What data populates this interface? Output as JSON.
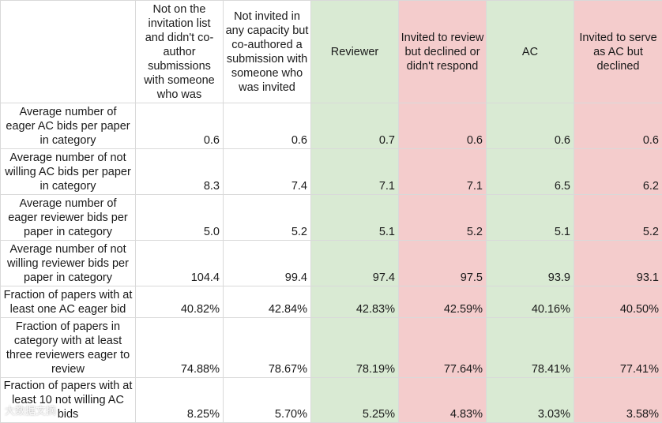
{
  "table": {
    "columns": [
      {
        "label": "Not on the invitation list and didn't co-author submissions with someone who was",
        "color": "none"
      },
      {
        "label": "Not invited in any capacity but co-authored a submission with someone who was invited",
        "color": "none"
      },
      {
        "label": "Reviewer",
        "color": "#d9ead3"
      },
      {
        "label": "Invited to review but declined or didn't respond",
        "color": "#f4cccc"
      },
      {
        "label": "AC",
        "color": "#d9ead3"
      },
      {
        "label": "Invited to serve as AC but declined",
        "color": "#f4cccc"
      }
    ],
    "rows": [
      {
        "label": "Average number of eager AC bids per paper in category",
        "values": [
          "0.6",
          "0.6",
          "0.7",
          "0.6",
          "0.6",
          "0.6"
        ]
      },
      {
        "label": "Average number of not willing AC bids per paper in category",
        "values": [
          "8.3",
          "7.4",
          "7.1",
          "7.1",
          "6.5",
          "6.2"
        ]
      },
      {
        "label": "Average number of eager reviewer bids per paper in category",
        "values": [
          "5.0",
          "5.2",
          "5.1",
          "5.2",
          "5.1",
          "5.2"
        ]
      },
      {
        "label": "Average number of not willing reviewer bids per paper in category",
        "values": [
          "104.4",
          "99.4",
          "97.4",
          "97.5",
          "93.9",
          "93.1"
        ]
      },
      {
        "label": "Fraction of papers with at least one AC eager bid",
        "values": [
          "40.82%",
          "42.84%",
          "42.83%",
          "42.59%",
          "40.16%",
          "40.50%"
        ]
      },
      {
        "label": "Fraction of papers in category with at least three reviewers eager to review",
        "values": [
          "74.88%",
          "78.67%",
          "78.19%",
          "77.64%",
          "78.41%",
          "77.41%"
        ]
      },
      {
        "label": "Fraction of papers with at least 10 not willing AC bids",
        "values": [
          "8.25%",
          "5.70%",
          "5.25%",
          "4.83%",
          "3.03%",
          "3.58%"
        ]
      }
    ]
  },
  "watermark": "大数据文摘"
}
